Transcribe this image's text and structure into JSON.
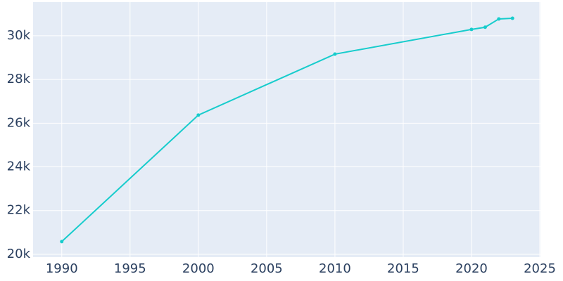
{
  "chart_data": {
    "type": "line",
    "x": [
      1990,
      2000,
      2010,
      2020,
      2021,
      2022,
      2023
    ],
    "series": [
      {
        "color": "#17cccc",
        "values": [
          20580,
          26370,
          29160,
          30290,
          30390,
          30770,
          30800
        ]
      }
    ],
    "xlim": [
      1987.9,
      2025.05
    ],
    "xticks": [
      1990,
      1995,
      2000,
      2005,
      2010,
      2015,
      2020,
      2025
    ],
    "ylim": [
      19870,
      31540
    ],
    "yticks": [
      {
        "value": 20000,
        "label": "20k"
      },
      {
        "value": 22000,
        "label": "22k"
      },
      {
        "value": 24000,
        "label": "24k"
      },
      {
        "value": 26000,
        "label": "26k"
      },
      {
        "value": 28000,
        "label": "28k"
      },
      {
        "value": 30000,
        "label": "30k"
      }
    ],
    "grid": true,
    "background": "#e5ecf6"
  }
}
